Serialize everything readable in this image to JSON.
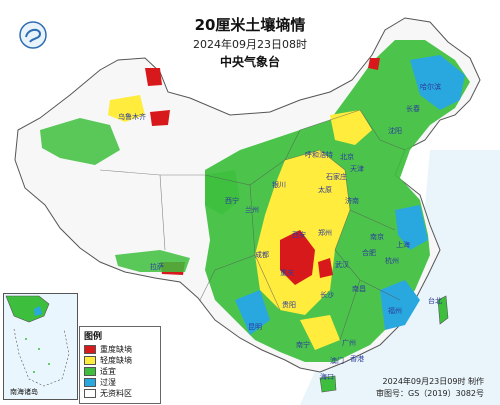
{
  "title": "20厘米土壤墒情",
  "datetime": "2024年09月23日08时",
  "publisher": "中央气象台",
  "legend": {
    "title": "图例",
    "items": [
      {
        "label": "重度缺墒",
        "color": "#d7191c"
      },
      {
        "label": "轻度缺墒",
        "color": "#ffec3d"
      },
      {
        "label": "适宜",
        "color": "#3dbf3d"
      },
      {
        "label": "过湿",
        "color": "#28a8df"
      },
      {
        "label": "无资料区",
        "color": "#ffffff"
      }
    ]
  },
  "inset_label": "南海诸岛",
  "footer": {
    "made": "2024年09月23日09时 制作",
    "approval": "审图号：GS（2019）3082号"
  },
  "cities": [
    {
      "name": "北京"
    },
    {
      "name": "天津"
    },
    {
      "name": "济南"
    },
    {
      "name": "郑州"
    },
    {
      "name": "南京"
    },
    {
      "name": "上海"
    },
    {
      "name": "杭州"
    },
    {
      "name": "武汉"
    },
    {
      "name": "长沙"
    },
    {
      "name": "南昌"
    },
    {
      "name": "福州"
    },
    {
      "name": "台北"
    },
    {
      "name": "广州"
    },
    {
      "name": "香港"
    },
    {
      "name": "澳门"
    },
    {
      "name": "南宁"
    },
    {
      "name": "海口"
    },
    {
      "name": "贵阳"
    },
    {
      "name": "昆明"
    },
    {
      "name": "重庆"
    },
    {
      "name": "成都"
    },
    {
      "name": "拉萨"
    },
    {
      "name": "西宁"
    },
    {
      "name": "兰州"
    },
    {
      "name": "银川"
    },
    {
      "name": "西安"
    },
    {
      "name": "太原"
    },
    {
      "name": "石家庄"
    },
    {
      "name": "呼和浩特"
    },
    {
      "name": "沈阳"
    },
    {
      "name": "长春"
    },
    {
      "name": "哈尔滨"
    },
    {
      "name": "乌鲁木齐"
    },
    {
      "name": "合肥"
    }
  ],
  "colors": {
    "sea": "#e9f5fb",
    "border": "#555555",
    "background_land": "#ffffff"
  }
}
